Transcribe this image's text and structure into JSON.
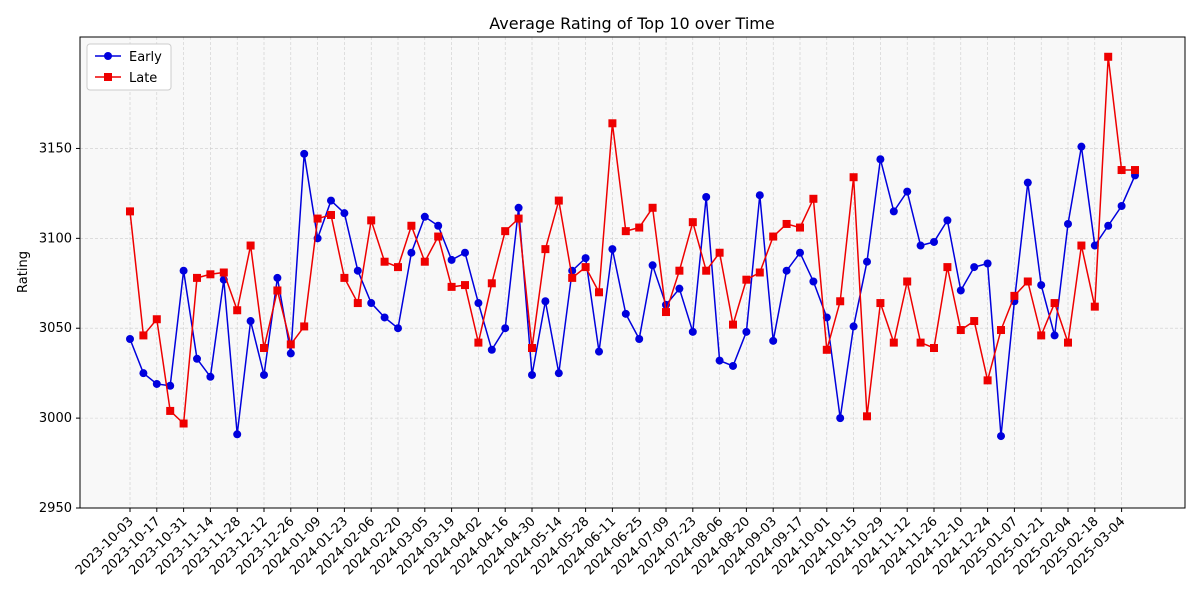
{
  "chart_data": {
    "type": "line",
    "title": "Average Rating of Top 10 over Time",
    "ylabel": "Rating",
    "categories": [
      "2023-10-03",
      null,
      "2023-10-17",
      null,
      "2023-10-31",
      null,
      "2023-11-14",
      null,
      "2023-11-28",
      null,
      "2023-12-12",
      null,
      "2023-12-26",
      null,
      "2024-01-09",
      null,
      "2024-01-23",
      null,
      "2024-02-06",
      null,
      "2024-02-20",
      null,
      "2024-03-05",
      null,
      "2024-03-19",
      null,
      "2024-04-02",
      null,
      "2024-04-16",
      null,
      "2024-04-30",
      null,
      "2024-05-14",
      null,
      "2024-05-28",
      null,
      "2024-06-11",
      null,
      "2024-06-25",
      null,
      "2024-07-09",
      null,
      "2024-07-23",
      null,
      "2024-08-06",
      null,
      "2024-08-20",
      null,
      "2024-09-03",
      null,
      "2024-09-17",
      null,
      "2024-10-01",
      null,
      "2024-10-15",
      null,
      "2024-10-29",
      null,
      "2024-11-12",
      null,
      "2024-11-26",
      null,
      "2024-12-10",
      null,
      "2024-12-24",
      null,
      "2025-01-07",
      null,
      "2025-01-21",
      null,
      "2025-02-04",
      null,
      "2025-02-18",
      null,
      "2025-03-04",
      null
    ],
    "series": [
      {
        "name": "Early",
        "color": "#0000dd",
        "marker": "circle",
        "values": [
          3044,
          3025,
          3019,
          3018,
          3082,
          3033,
          3023,
          3077,
          2991,
          3054,
          3024,
          3078,
          3036,
          3147,
          3100,
          3121,
          3114,
          3082,
          3064,
          3056,
          3050,
          3092,
          3112,
          3107,
          3088,
          3092,
          3064,
          3038,
          3050,
          3117,
          3024,
          3065,
          3025,
          3082,
          3089,
          3037,
          3094,
          3058,
          3044,
          3085,
          3063,
          3072,
          3048,
          3123,
          3032,
          3029,
          3048,
          3124,
          3043,
          3082,
          3092,
          3076,
          3056,
          3000,
          3051,
          3087,
          3144,
          3115,
          3126,
          3096,
          3098,
          3110,
          3071,
          3084,
          3086,
          2990,
          3065,
          3131,
          3074,
          3046,
          3108,
          3151,
          3096,
          3107,
          3118,
          3135
        ]
      },
      {
        "name": "Late",
        "color": "#ee0000",
        "marker": "square",
        "values": [
          3115,
          3046,
          3055,
          3004,
          2997,
          3078,
          3080,
          3081,
          3060,
          3096,
          3039,
          3071,
          3041,
          3051,
          3111,
          3113,
          3078,
          3064,
          3110,
          3087,
          3084,
          3107,
          3087,
          3101,
          3073,
          3074,
          3042,
          3075,
          3104,
          3111,
          3039,
          3094,
          3121,
          3078,
          3084,
          3070,
          3164,
          3104,
          3106,
          3117,
          3059,
          3082,
          3109,
          3082,
          3092,
          3052,
          3077,
          3081,
          3101,
          3108,
          3106,
          3122,
          3038,
          3065,
          3134,
          3001,
          3064,
          3042,
          3076,
          3042,
          3039,
          3084,
          3049,
          3054,
          3021,
          3049,
          3068,
          3076,
          3046,
          3064,
          3042,
          3096,
          3062,
          3201,
          3138,
          3138
        ]
      }
    ],
    "ylim": [
      2950,
      3212
    ],
    "yticks": [
      2950,
      3000,
      3050,
      3100,
      3150
    ],
    "grid": true,
    "legend": "upper left"
  }
}
